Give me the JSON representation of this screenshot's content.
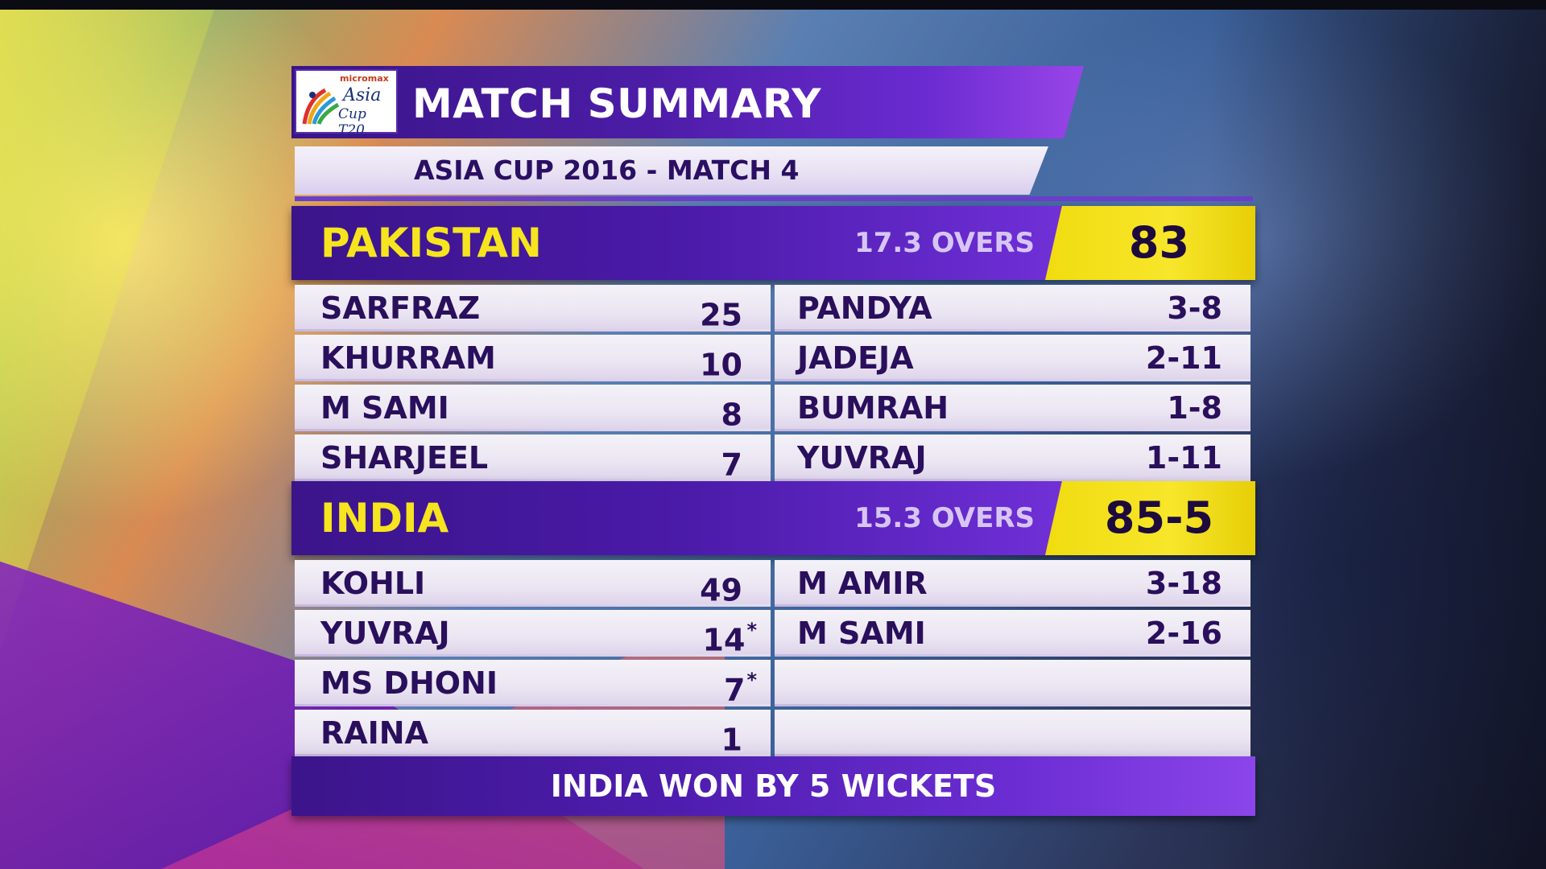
{
  "header": {
    "title": "MATCH SUMMARY",
    "subtitle": "ASIA CUP 2016 - MATCH 4",
    "logo": {
      "sponsor": "micromax",
      "line1": "Asia",
      "line2": "Cup T20"
    }
  },
  "innings": [
    {
      "team": "PAKISTAN",
      "overs": "17.3 OVERS",
      "score": "83",
      "batting": [
        {
          "name": "SARFRAZ",
          "runs": "25",
          "not_out": ""
        },
        {
          "name": "KHURRAM",
          "runs": "10",
          "not_out": ""
        },
        {
          "name": "M SAMI",
          "runs": "8",
          "not_out": ""
        },
        {
          "name": "SHARJEEL",
          "runs": "7",
          "not_out": ""
        }
      ],
      "bowling": [
        {
          "name": "PANDYA",
          "figures": "3-8"
        },
        {
          "name": "JADEJA",
          "figures": "2-11"
        },
        {
          "name": "BUMRAH",
          "figures": "1-8"
        },
        {
          "name": "YUVRAJ",
          "figures": "1-11"
        }
      ]
    },
    {
      "team": "INDIA",
      "overs": "15.3 OVERS",
      "score": "85-5",
      "batting": [
        {
          "name": "KOHLI",
          "runs": "49",
          "not_out": ""
        },
        {
          "name": "YUVRAJ",
          "runs": "14",
          "not_out": "*"
        },
        {
          "name": "MS DHONI",
          "runs": "7",
          "not_out": "*"
        },
        {
          "name": "RAINA",
          "runs": "1",
          "not_out": ""
        }
      ],
      "bowling": [
        {
          "name": "M AMIR",
          "figures": "3-18"
        },
        {
          "name": "M SAMI",
          "figures": "2-16"
        },
        {
          "name": "",
          "figures": ""
        },
        {
          "name": "",
          "figures": ""
        }
      ]
    }
  ],
  "result": "INDIA WON BY 5 WICKETS",
  "colors": {
    "accent_purple": "#4a1aa8",
    "score_yellow": "#f5e021",
    "team_yellow": "#f6e41f"
  }
}
